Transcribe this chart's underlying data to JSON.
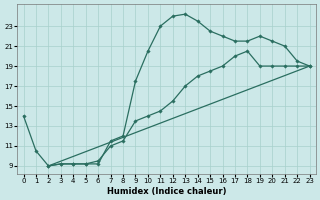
{
  "xlabel": "Humidex (Indice chaleur)",
  "bg_color": "#cce8e8",
  "line_color": "#2a6e60",
  "grid_color": "#a8d0cc",
  "xlim": [
    -0.5,
    23.5
  ],
  "ylim": [
    8.2,
    25.2
  ],
  "xticks": [
    0,
    1,
    2,
    3,
    4,
    5,
    6,
    7,
    8,
    9,
    10,
    11,
    12,
    13,
    14,
    15,
    16,
    17,
    18,
    19,
    20,
    21,
    22,
    23
  ],
  "yticks": [
    9,
    11,
    13,
    15,
    17,
    19,
    21,
    23
  ],
  "line1_x": [
    0,
    1,
    2,
    3,
    4,
    5,
    6,
    7,
    8,
    9,
    10,
    11,
    12,
    13,
    14,
    15,
    16,
    17,
    18,
    19,
    20,
    21,
    22,
    23
  ],
  "line1_y": [
    14,
    10.5,
    9,
    9.2,
    9.2,
    9.2,
    9.2,
    11.5,
    12.0,
    17.5,
    20.5,
    23.0,
    24.0,
    24.2,
    23.5,
    22.5,
    22.0,
    21.5,
    21.5,
    22.0,
    21.5,
    21.0,
    19.5,
    19.0
  ],
  "line2_x": [
    2,
    3,
    4,
    5,
    6,
    7,
    8,
    9,
    10,
    11,
    12,
    13,
    14,
    15,
    16,
    17,
    18,
    19,
    20,
    21,
    22,
    23
  ],
  "line2_y": [
    9.0,
    9.2,
    9.2,
    9.2,
    9.5,
    11.0,
    11.5,
    13.5,
    14.0,
    14.5,
    15.5,
    17.0,
    18.0,
    18.5,
    19.0,
    20.0,
    20.5,
    19.0,
    19.0,
    19.0,
    19.0,
    19.0
  ],
  "line3_x": [
    2,
    23
  ],
  "line3_y": [
    9.0,
    19.0
  ]
}
